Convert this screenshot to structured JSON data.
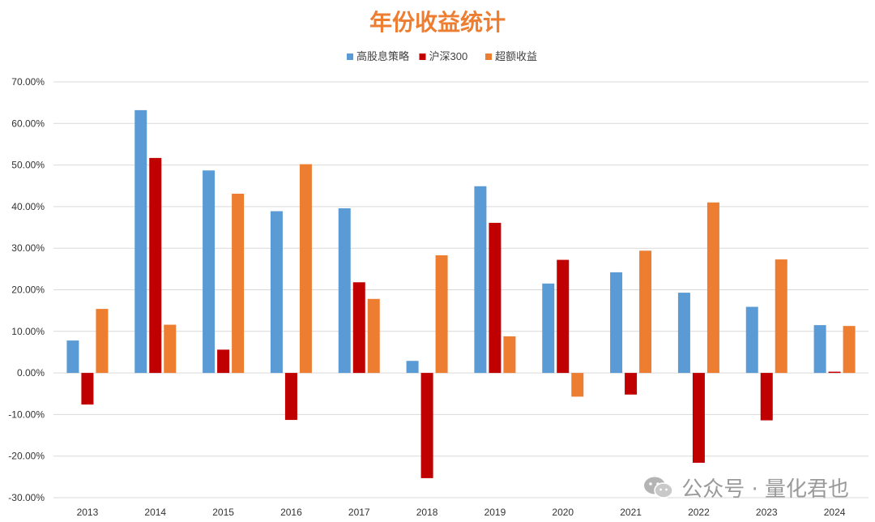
{
  "chart_data": {
    "type": "bar",
    "title": "年份收益统计",
    "categories": [
      "2013",
      "2014",
      "2015",
      "2016",
      "2017",
      "2018",
      "2019",
      "2020",
      "2021",
      "2022",
      "2023",
      "2024"
    ],
    "series": [
      {
        "name": "高股息策略",
        "color": "#5B9BD5",
        "values": [
          7.8,
          63.2,
          48.7,
          38.9,
          39.6,
          2.9,
          44.9,
          21.5,
          24.2,
          19.3,
          15.9,
          11.5
        ]
      },
      {
        "name": "沪深300",
        "color": "#C00000",
        "values": [
          -7.6,
          51.7,
          5.6,
          -11.3,
          21.8,
          -25.3,
          36.1,
          27.2,
          -5.2,
          -21.6,
          -11.4,
          0.3
        ]
      },
      {
        "name": "超额收益",
        "color": "#ED7D31",
        "values": [
          15.4,
          11.6,
          43.1,
          50.2,
          17.8,
          28.3,
          8.8,
          -5.7,
          29.4,
          41.0,
          27.3,
          11.3
        ]
      }
    ],
    "ylim": [
      -30,
      70
    ],
    "yticks": [
      "-30.00%",
      "-20.00%",
      "-10.00%",
      "0.00%",
      "10.00%",
      "20.00%",
      "30.00%",
      "40.00%",
      "50.00%",
      "60.00%",
      "70.00%"
    ],
    "grid": true,
    "legend": "top-center"
  },
  "colors": {
    "title": "#ED7D31",
    "grid": "#d9d9d9",
    "tick": "#333333"
  },
  "watermark": {
    "text": "公众号 · 量化君也",
    "icon": "wechat-icon"
  }
}
